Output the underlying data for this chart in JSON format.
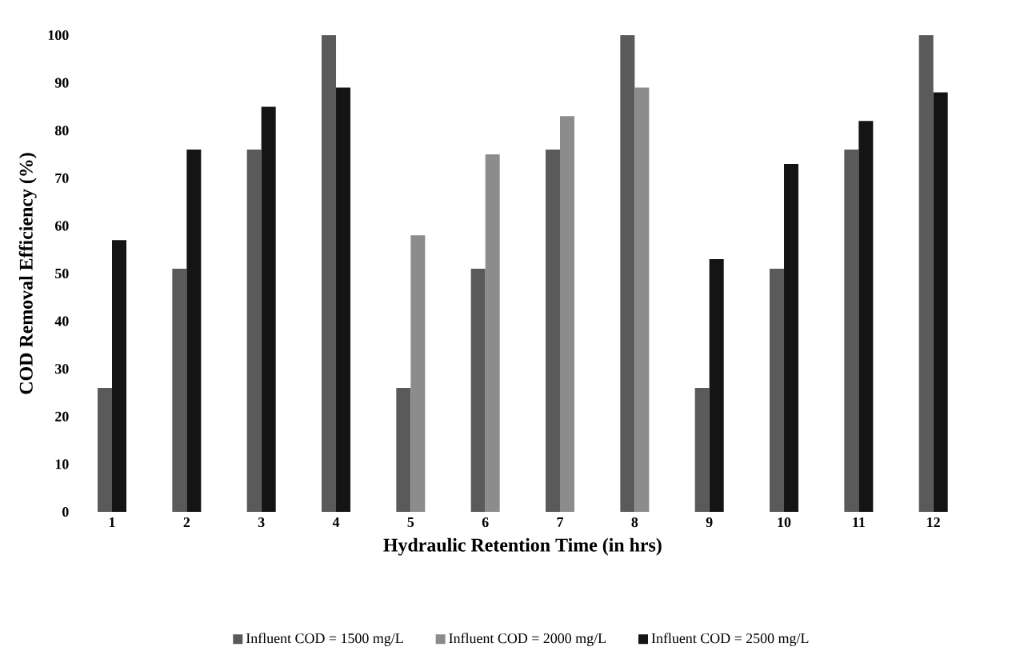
{
  "chart_data": {
    "type": "bar",
    "xlabel": "Hydraulic Retention Time (in hrs)",
    "ylabel": "COD Removal Efficiency (%)",
    "categories": [
      "1",
      "2",
      "3",
      "4",
      "5",
      "6",
      "7",
      "8",
      "9",
      "10",
      "11",
      "12"
    ],
    "series": [
      {
        "name": "Influent COD = 1500 mg/L",
        "color": "#5a5a5a",
        "values": [
          26,
          51,
          76,
          100,
          26,
          51,
          76,
          100,
          26,
          51,
          76,
          100
        ]
      },
      {
        "name": "Influent COD = 2000 mg/L",
        "color": "#8c8c8c",
        "values": [
          null,
          null,
          null,
          null,
          58,
          75,
          83,
          89,
          null,
          null,
          null,
          null
        ]
      },
      {
        "name": "Influent COD = 2500 mg/L",
        "color": "#141414",
        "values": [
          57,
          76,
          85,
          89,
          null,
          null,
          null,
          null,
          53,
          73,
          82,
          88
        ]
      }
    ],
    "ylim": [
      0,
      100
    ],
    "yticks": [
      0,
      10,
      20,
      30,
      40,
      50,
      60,
      70,
      80,
      90,
      100
    ],
    "grid": false,
    "legend": "bottom"
  }
}
